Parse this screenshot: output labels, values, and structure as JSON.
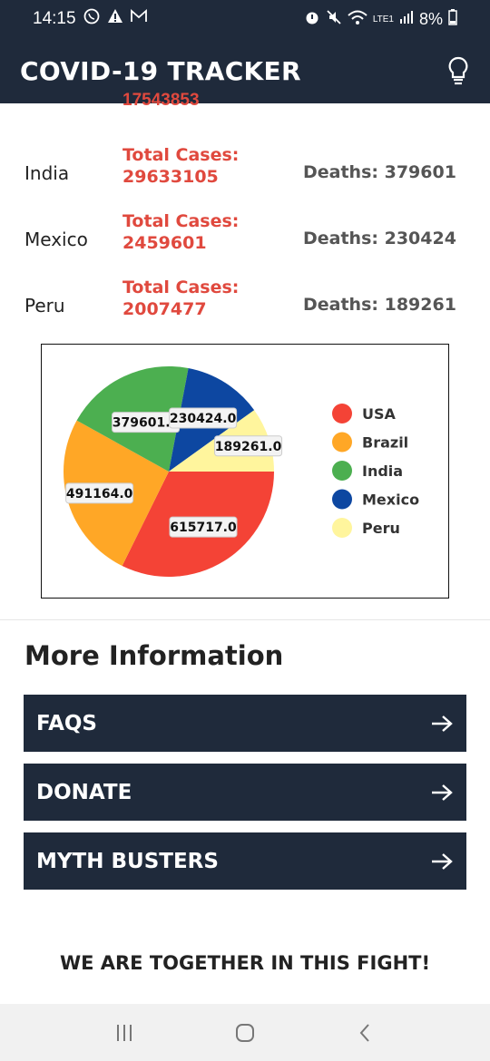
{
  "status_bar": {
    "time": "14:15",
    "battery": "8%",
    "network": "LTE1"
  },
  "app_bar": {
    "title": "COVID-19 TRACKER"
  },
  "cut_row": {
    "total_cases_value": "17543853"
  },
  "countries": [
    {
      "name": "India",
      "total_label": "Total Cases:",
      "total_value": "29633105",
      "deaths": "Deaths: 379601"
    },
    {
      "name": "Mexico",
      "total_label": "Total Cases:",
      "total_value": "2459601",
      "deaths": "Deaths: 230424"
    },
    {
      "name": "Peru",
      "total_label": "Total Cases:",
      "total_value": "2007477",
      "deaths": "Deaths: 189261"
    }
  ],
  "chart_data": {
    "type": "pie",
    "categories": [
      "USA",
      "Brazil",
      "India",
      "Mexico",
      "Peru"
    ],
    "values": [
      615717.0,
      491164.0,
      379601.0,
      230424.0,
      189261.0
    ],
    "labels": [
      "615717.0",
      "491164.0",
      "379601.0",
      "230424.0",
      "189261.0"
    ],
    "colors": [
      "#f44336",
      "#ffa726",
      "#4caf50",
      "#0d47a1",
      "#fff59d"
    ],
    "legend": "right"
  },
  "more_info": {
    "title": "More Information",
    "buttons": [
      {
        "label": "FAQS"
      },
      {
        "label": "DONATE"
      },
      {
        "label": "MYTH BUSTERS"
      }
    ]
  },
  "slogan": "WE ARE TOGETHER IN THIS FIGHT!"
}
